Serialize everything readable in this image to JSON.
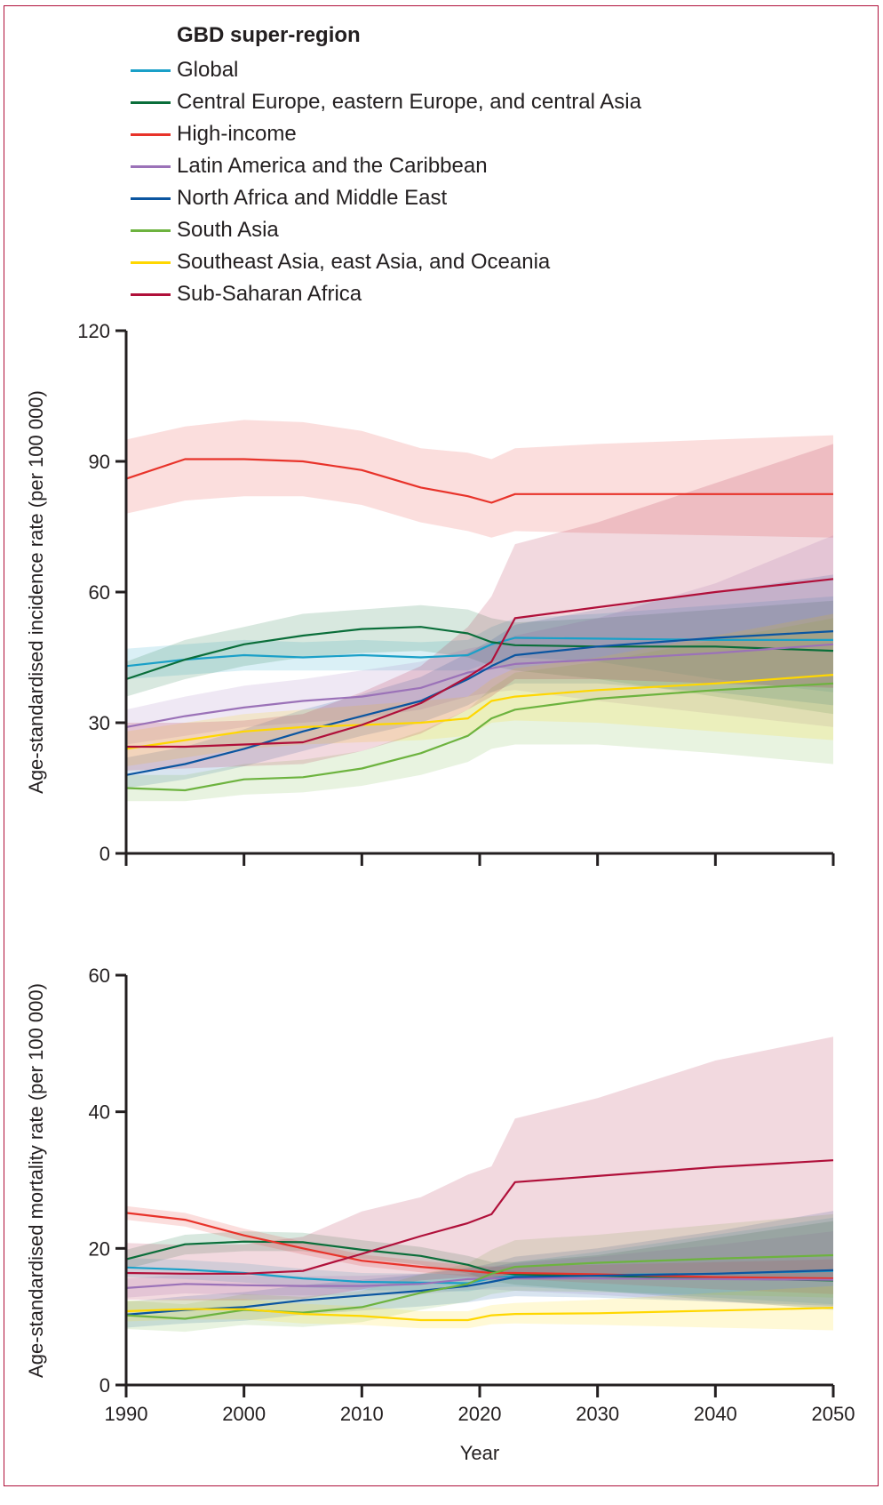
{
  "legend": {
    "title": "GBD super-region",
    "items": [
      {
        "label": "Global",
        "color": "#1aa0c8"
      },
      {
        "label": "Central Europe, eastern Europe, and central Asia",
        "color": "#0a6e3a"
      },
      {
        "label": "High-income",
        "color": "#e8332a"
      },
      {
        "label": "Latin America and the Caribbean",
        "color": "#9b72b8"
      },
      {
        "label": "North Africa and Middle East",
        "color": "#0b55a0"
      },
      {
        "label": "South Asia",
        "color": "#6db33f"
      },
      {
        "label": "Southeast Asia, east Asia, and Oceania",
        "color": "#ffd700"
      },
      {
        "label": "Sub-Saharan Africa",
        "color": "#b0103a"
      }
    ]
  },
  "chart_data": [
    {
      "type": "line",
      "title": "",
      "xlabel": "",
      "ylabel": "Age-standardised incidence rate (per 100 000)",
      "xlim": [
        1990,
        2050
      ],
      "ylim": [
        0,
        120
      ],
      "yticks": [
        0,
        30,
        60,
        90,
        120
      ],
      "xticks": [
        1990,
        2000,
        2010,
        2020,
        2030,
        2040,
        2050
      ],
      "grid": false,
      "legend": "top",
      "x": [
        1990,
        1995,
        2000,
        2005,
        2010,
        2015,
        2019,
        2021,
        2023,
        2030,
        2040,
        2050
      ],
      "series": [
        {
          "name": "Global",
          "values": [
            43,
            44.5,
            45.5,
            45,
            45.5,
            45,
            45.5,
            48,
            49.5,
            49.3,
            49,
            49
          ],
          "lower": [
            40,
            41,
            42,
            42,
            42,
            42,
            42,
            44,
            45,
            44,
            40,
            37
          ],
          "upper": [
            47,
            48,
            49,
            48.5,
            49,
            48.5,
            49,
            52,
            54,
            55,
            57,
            59
          ]
        },
        {
          "name": "Central Europe, eastern Europe, and central Asia",
          "values": [
            40,
            44.5,
            48,
            50,
            51.5,
            52,
            50.5,
            48.5,
            47.8,
            47.5,
            47.5,
            46.5
          ],
          "lower": [
            36,
            40,
            43,
            45,
            46,
            46.5,
            45,
            43,
            42,
            40,
            36,
            32
          ],
          "upper": [
            44,
            49,
            52,
            55,
            56,
            57,
            56,
            54,
            53,
            54,
            56,
            58
          ]
        },
        {
          "name": "High-income",
          "values": [
            86,
            90.5,
            90.5,
            90,
            88,
            84,
            82,
            80.5,
            82.5,
            82.5,
            82.5,
            82.5
          ],
          "lower": [
            78,
            81,
            82,
            82,
            80,
            76,
            74,
            72.5,
            74,
            73.5,
            73,
            72.5
          ],
          "upper": [
            95,
            98,
            99.5,
            99,
            97,
            93,
            92,
            90.5,
            93,
            94,
            95,
            96
          ]
        },
        {
          "name": "Latin America and the Caribbean",
          "values": [
            29,
            31.5,
            33.5,
            35,
            36,
            38,
            41.5,
            42.5,
            43.5,
            44.5,
            46,
            48
          ],
          "lower": [
            25,
            27,
            29,
            30,
            31,
            33,
            36,
            37,
            37.5,
            35,
            32,
            29
          ],
          "upper": [
            33,
            36,
            38.5,
            40,
            42,
            44,
            47,
            48,
            50,
            54,
            62,
            73
          ]
        },
        {
          "name": "North Africa and Middle East",
          "values": [
            18,
            20.5,
            24,
            28,
            31.5,
            35,
            40,
            43,
            45.5,
            47.5,
            49.5,
            51
          ],
          "lower": [
            15,
            17,
            20,
            23.5,
            27,
            30,
            34,
            37,
            39,
            39,
            37,
            34
          ],
          "upper": [
            22,
            24.5,
            28.5,
            33,
            36.5,
            40.5,
            46,
            49,
            52.5,
            56,
            60,
            64
          ]
        },
        {
          "name": "South Asia",
          "values": [
            15,
            14.5,
            17,
            17.5,
            19.5,
            23,
            27,
            31,
            33,
            35.5,
            37.5,
            39
          ],
          "lower": [
            12,
            12,
            13.5,
            14,
            15.5,
            18,
            21,
            24,
            25,
            25,
            23,
            20.5
          ],
          "upper": [
            18,
            18,
            20.5,
            21.5,
            23.5,
            28,
            33,
            38,
            41.5,
            44,
            49,
            54
          ]
        },
        {
          "name": "Southeast Asia, east Asia, and Oceania",
          "values": [
            24,
            26,
            28,
            29,
            29.5,
            30,
            31,
            35,
            36,
            37.5,
            39,
            41
          ],
          "lower": [
            20,
            22,
            24,
            25,
            25.5,
            26,
            27,
            30,
            30.5,
            30,
            28,
            26
          ],
          "upper": [
            28,
            30,
            32,
            33,
            34,
            35,
            36,
            40,
            42.5,
            45,
            50,
            55
          ]
        },
        {
          "name": "Sub-Saharan Africa",
          "values": [
            24.5,
            24.5,
            25,
            25.5,
            29.5,
            34.5,
            40.5,
            44,
            54,
            56.5,
            60,
            63
          ],
          "lower": [
            19,
            19.5,
            20,
            20.5,
            23.5,
            27.5,
            33,
            36,
            40,
            40,
            39,
            38
          ],
          "upper": [
            30,
            30,
            30.5,
            32,
            37,
            43,
            52,
            59,
            71,
            76,
            85,
            94
          ]
        }
      ]
    },
    {
      "type": "line",
      "title": "",
      "xlabel": "Year",
      "ylabel": "Age-standardised mortality rate (per 100 000)",
      "xlim": [
        1990,
        2050
      ],
      "ylim": [
        0,
        60
      ],
      "yticks": [
        0,
        20,
        40,
        60
      ],
      "xticks": [
        1990,
        2000,
        2010,
        2020,
        2030,
        2040,
        2050
      ],
      "grid": false,
      "legend": "top",
      "x": [
        1990,
        1995,
        2000,
        2005,
        2010,
        2015,
        2019,
        2021,
        2023,
        2030,
        2040,
        2050
      ],
      "series": [
        {
          "name": "Global",
          "values": [
            17.2,
            16.9,
            16.4,
            15.6,
            15.1,
            15.0,
            14.9,
            15.6,
            16.0,
            16.1,
            16.3,
            16.7
          ],
          "lower": [
            15.8,
            15.5,
            15.0,
            14.3,
            13.9,
            13.8,
            13.7,
            14.3,
            14.4,
            13.8,
            12.8,
            11.8
          ],
          "upper": [
            18.6,
            18.3,
            17.8,
            17.0,
            16.4,
            16.3,
            16.2,
            17.2,
            18.0,
            19.5,
            22.0,
            24.5
          ]
        },
        {
          "name": "Central Europe, eastern Europe, and central Asia",
          "values": [
            18.4,
            20.6,
            21.0,
            20.9,
            19.8,
            18.9,
            17.6,
            16.6,
            16.2,
            16.0,
            15.6,
            15.3
          ],
          "lower": [
            17.0,
            19.1,
            19.6,
            19.6,
            18.5,
            17.6,
            16.3,
            15.2,
            14.7,
            13.8,
            12.4,
            11.0
          ],
          "upper": [
            19.8,
            22.0,
            22.5,
            22.3,
            21.2,
            20.2,
            18.9,
            18.0,
            18.0,
            19.0,
            21.5,
            24.0
          ]
        },
        {
          "name": "High-income",
          "values": [
            25.2,
            24.2,
            21.9,
            20.0,
            18.2,
            17.3,
            16.7,
            16.4,
            16.4,
            16.2,
            15.8,
            15.6
          ],
          "lower": [
            24.2,
            23.2,
            21.0,
            19.1,
            17.4,
            16.5,
            15.9,
            15.6,
            15.5,
            14.9,
            14.0,
            13.3
          ],
          "upper": [
            26.2,
            25.2,
            22.9,
            21.0,
            19.1,
            18.2,
            17.5,
            17.3,
            17.4,
            17.6,
            18.0,
            18.4
          ]
        },
        {
          "name": "Latin America and the Caribbean",
          "values": [
            14.2,
            14.8,
            14.6,
            14.5,
            14.5,
            14.8,
            15.5,
            15.6,
            15.6,
            15.6,
            15.5,
            15.4
          ],
          "lower": [
            12.8,
            13.4,
            13.2,
            13.1,
            13.1,
            13.3,
            13.9,
            14.0,
            13.8,
            13.2,
            12.2,
            11.2
          ],
          "upper": [
            15.6,
            16.2,
            16.0,
            15.9,
            16.0,
            16.3,
            17.2,
            17.4,
            17.8,
            18.8,
            20.5,
            22.5
          ]
        },
        {
          "name": "North Africa and Middle East",
          "values": [
            10.3,
            11.0,
            11.4,
            12.4,
            13.1,
            13.8,
            14.5,
            15.1,
            15.8,
            16.0,
            16.3,
            16.8
          ],
          "lower": [
            8.4,
            9.0,
            9.4,
            10.3,
            10.9,
            11.5,
            12.1,
            12.6,
            13.0,
            12.8,
            12.2,
            11.6
          ],
          "upper": [
            12.2,
            13.0,
            13.6,
            14.6,
            15.4,
            16.2,
            17.1,
            17.8,
            18.8,
            20.0,
            22.5,
            25.5
          ]
        },
        {
          "name": "South Asia",
          "values": [
            10.2,
            9.7,
            11.0,
            10.6,
            11.4,
            13.5,
            14.8,
            16.3,
            17.3,
            17.9,
            18.5,
            19.0
          ],
          "lower": [
            8.2,
            7.8,
            8.8,
            8.5,
            9.2,
            11.0,
            12.2,
            13.3,
            13.8,
            13.6,
            13.2,
            12.8
          ],
          "upper": [
            12.4,
            11.8,
            13.3,
            12.9,
            13.8,
            16.2,
            17.8,
            19.8,
            21.2,
            22.0,
            23.5,
            25.0
          ]
        },
        {
          "name": "Southeast Asia, east Asia, and Oceania",
          "values": [
            10.8,
            11.1,
            11.1,
            10.4,
            10.1,
            9.5,
            9.5,
            10.2,
            10.4,
            10.5,
            10.9,
            11.3
          ],
          "lower": [
            9.3,
            9.6,
            9.6,
            9.0,
            8.8,
            8.3,
            8.3,
            8.9,
            9.0,
            8.8,
            8.4,
            8.0
          ],
          "upper": [
            12.3,
            12.6,
            12.6,
            11.9,
            11.5,
            10.8,
            10.8,
            11.7,
            12.0,
            12.5,
            13.5,
            14.5
          ]
        },
        {
          "name": "Sub-Saharan Africa",
          "values": [
            16.4,
            16.3,
            16.3,
            16.7,
            19.2,
            21.8,
            23.7,
            25.0,
            29.7,
            30.6,
            31.9,
            32.9
          ],
          "lower": [
            12.5,
            12.4,
            12.4,
            12.6,
            14.0,
            15.3,
            15.8,
            15.6,
            16.3,
            16.2,
            15.9,
            15.6
          ],
          "upper": [
            20.8,
            20.5,
            20.6,
            21.7,
            25.4,
            27.5,
            30.8,
            32.0,
            39.0,
            42.0,
            47.5,
            51.0
          ]
        }
      ]
    }
  ]
}
